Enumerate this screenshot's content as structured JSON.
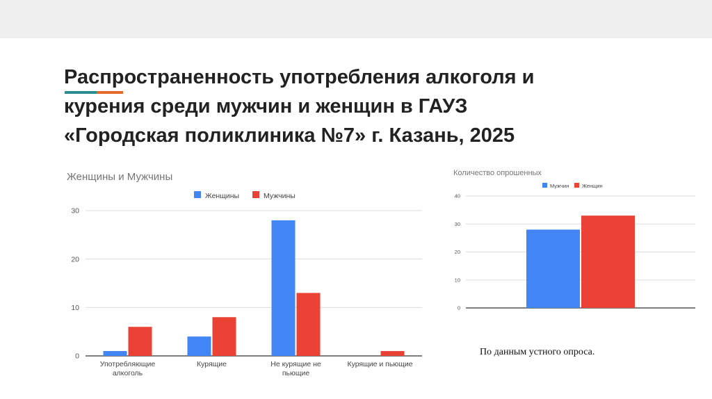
{
  "slide": {
    "title_lines": [
      "Распространенность употребления алкоголя и",
      "курения среди мужчин и женщин в ГАУЗ",
      "«Городская поликлиника №7» г. Казань, 2025"
    ],
    "source_note": "По данным устного опроса.",
    "accent_colors": [
      "#2a8c8c",
      "#e8692c"
    ]
  },
  "chart_data": [
    {
      "type": "bar",
      "title": "Женщины и Мужчины",
      "categories": [
        "Употребляющие алкоголь",
        "Курящие",
        "Не курящие не пьющие",
        "Курящие и пьющие"
      ],
      "category_label_lines": [
        [
          "Употребляющие",
          "алкоголь"
        ],
        [
          "Курящие"
        ],
        [
          "Не курящие не",
          "пьющие"
        ],
        [
          "Курящие и пьющие"
        ]
      ],
      "series": [
        {
          "name": "Женщины",
          "values": [
            1,
            4,
            28,
            0
          ],
          "color": "#4285f4"
        },
        {
          "name": "Мужчины",
          "values": [
            6,
            8,
            13,
            1
          ],
          "color": "#ea4335"
        }
      ],
      "ylim": [
        0,
        30
      ],
      "yticks": [
        0,
        10,
        20,
        30
      ],
      "grid": true,
      "legend": "top"
    },
    {
      "type": "bar",
      "title": "Количество опрошенных",
      "categories": [
        ""
      ],
      "series": [
        {
          "name": "Мужчин",
          "values": [
            28
          ],
          "color": "#4285f4"
        },
        {
          "name": "Женщин",
          "values": [
            33
          ],
          "color": "#ea4335"
        }
      ],
      "ylim": [
        0,
        40
      ],
      "yticks": [
        0,
        10,
        20,
        30,
        40
      ],
      "grid": true,
      "legend": "top"
    }
  ]
}
